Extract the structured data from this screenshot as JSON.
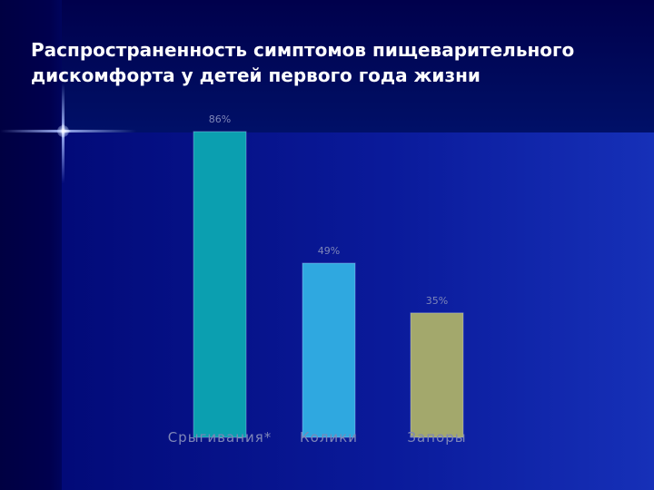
{
  "slide": {
    "title": "Распространенность симптомов пищеварительного\nдискомфорта у детей первого года жизни"
  },
  "chart_data": {
    "type": "bar",
    "categories": [
      "Срыгивания*",
      "Колики",
      "Запоры"
    ],
    "values": [
      86,
      49,
      35
    ],
    "data_labels": [
      "86%",
      "49%",
      "35%"
    ],
    "ylim": [
      0,
      100
    ],
    "grid": false,
    "colors": [
      "#0b9fb0",
      "#2fa8e0",
      "#a3a86c"
    ]
  }
}
